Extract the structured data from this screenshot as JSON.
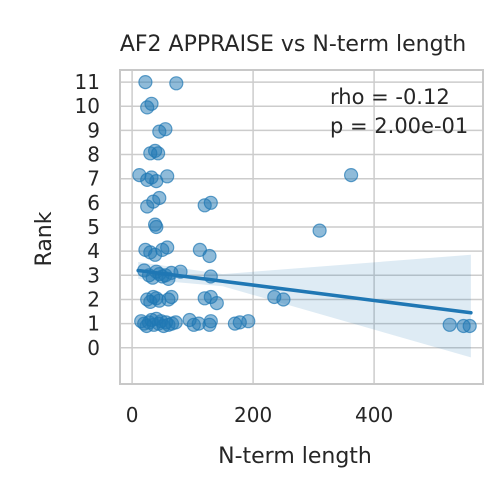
{
  "chart_data": {
    "type": "scatter",
    "title": "AF2 APPRAISE vs N-term length",
    "xlabel": "N-term length",
    "ylabel": "Rank",
    "xlim": [
      -20,
      580
    ],
    "ylim": [
      -1.5,
      11.5
    ],
    "x_ticks": [
      0,
      200,
      400
    ],
    "y_ticks": [
      0,
      1,
      2,
      3,
      4,
      5,
      6,
      7,
      8,
      9,
      10,
      11
    ],
    "grid": true,
    "annotations": [
      "rho = -0.12",
      "p = 2.00e-01"
    ],
    "colors": {
      "points": "#1f77b4",
      "line": "#1f77b4",
      "band": "#1f77b4",
      "grid": "#cccccc",
      "spine": "#c8c8c8"
    },
    "regression": {
      "x": [
        10,
        560
      ],
      "y": [
        3.2,
        1.45
      ],
      "ci_upper": [
        3.55,
        3.85
      ],
      "ci_lower": [
        2.85,
        -0.4
      ],
      "ci_mid_x": 150,
      "ci_mid_upper": 3.05,
      "ci_mid_lower": 2.55
    },
    "points": [
      {
        "x": 22,
        "y": 11.0
      },
      {
        "x": 73,
        "y": 10.95
      },
      {
        "x": 25,
        "y": 9.95
      },
      {
        "x": 32,
        "y": 10.1
      },
      {
        "x": 45,
        "y": 8.95
      },
      {
        "x": 55,
        "y": 9.05
      },
      {
        "x": 30,
        "y": 8.05
      },
      {
        "x": 38,
        "y": 8.15
      },
      {
        "x": 43,
        "y": 8.05
      },
      {
        "x": 12,
        "y": 7.15
      },
      {
        "x": 25,
        "y": 6.95
      },
      {
        "x": 32,
        "y": 7.05
      },
      {
        "x": 40,
        "y": 6.9
      },
      {
        "x": 58,
        "y": 7.1
      },
      {
        "x": 362,
        "y": 7.15
      },
      {
        "x": 25,
        "y": 5.85
      },
      {
        "x": 35,
        "y": 6.05
      },
      {
        "x": 45,
        "y": 6.2
      },
      {
        "x": 120,
        "y": 5.9
      },
      {
        "x": 130,
        "y": 6.0
      },
      {
        "x": 38,
        "y": 5.1
      },
      {
        "x": 40,
        "y": 5.0
      },
      {
        "x": 310,
        "y": 4.85
      },
      {
        "x": 22,
        "y": 4.05
      },
      {
        "x": 30,
        "y": 3.95
      },
      {
        "x": 38,
        "y": 3.85
      },
      {
        "x": 50,
        "y": 4.05
      },
      {
        "x": 58,
        "y": 4.15
      },
      {
        "x": 112,
        "y": 4.05
      },
      {
        "x": 128,
        "y": 3.8
      },
      {
        "x": 20,
        "y": 3.2
      },
      {
        "x": 28,
        "y": 3.0
      },
      {
        "x": 34,
        "y": 2.9
      },
      {
        "x": 40,
        "y": 3.15
      },
      {
        "x": 45,
        "y": 3.05
      },
      {
        "x": 50,
        "y": 2.95
      },
      {
        "x": 55,
        "y": 3.0
      },
      {
        "x": 60,
        "y": 2.85
      },
      {
        "x": 65,
        "y": 3.1
      },
      {
        "x": 80,
        "y": 3.15
      },
      {
        "x": 130,
        "y": 2.95
      },
      {
        "x": 25,
        "y": 2.0
      },
      {
        "x": 30,
        "y": 1.9
      },
      {
        "x": 35,
        "y": 2.1
      },
      {
        "x": 40,
        "y": 2.05
      },
      {
        "x": 45,
        "y": 1.95
      },
      {
        "x": 60,
        "y": 2.0
      },
      {
        "x": 65,
        "y": 2.1
      },
      {
        "x": 120,
        "y": 2.05
      },
      {
        "x": 130,
        "y": 2.1
      },
      {
        "x": 140,
        "y": 1.85
      },
      {
        "x": 235,
        "y": 2.1
      },
      {
        "x": 250,
        "y": 2.0
      },
      {
        "x": 15,
        "y": 1.1
      },
      {
        "x": 20,
        "y": 1.0
      },
      {
        "x": 24,
        "y": 0.9
      },
      {
        "x": 28,
        "y": 1.05
      },
      {
        "x": 32,
        "y": 1.15
      },
      {
        "x": 36,
        "y": 0.95
      },
      {
        "x": 40,
        "y": 1.2
      },
      {
        "x": 44,
        "y": 1.0
      },
      {
        "x": 48,
        "y": 1.1
      },
      {
        "x": 52,
        "y": 0.9
      },
      {
        "x": 56,
        "y": 1.05
      },
      {
        "x": 60,
        "y": 0.95
      },
      {
        "x": 66,
        "y": 1.0
      },
      {
        "x": 72,
        "y": 1.05
      },
      {
        "x": 95,
        "y": 1.15
      },
      {
        "x": 102,
        "y": 0.95
      },
      {
        "x": 110,
        "y": 1.0
      },
      {
        "x": 128,
        "y": 0.95
      },
      {
        "x": 130,
        "y": 1.1
      },
      {
        "x": 170,
        "y": 1.0
      },
      {
        "x": 178,
        "y": 1.05
      },
      {
        "x": 192,
        "y": 1.1
      },
      {
        "x": 525,
        "y": 0.95
      },
      {
        "x": 548,
        "y": 0.9
      },
      {
        "x": 558,
        "y": 0.9
      }
    ]
  }
}
